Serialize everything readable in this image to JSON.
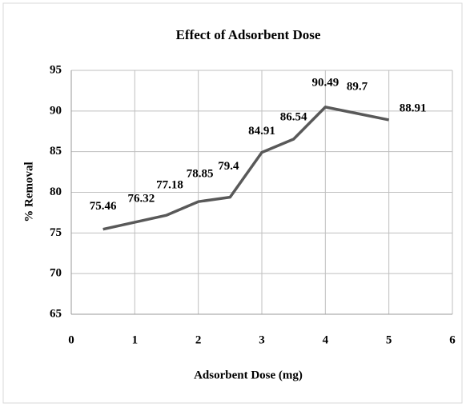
{
  "chart_data": {
    "type": "line",
    "title": "Effect of Adsorbent Dose",
    "x_label": "Adsorbent Dose (mg)",
    "y_label": "% Removal",
    "x": [
      0.5,
      1,
      1.5,
      2,
      2.5,
      3,
      3.5,
      4,
      4.5,
      5
    ],
    "series": [
      {
        "name": "% Removal",
        "color": "#595959",
        "values": [
          75.46,
          76.32,
          77.18,
          78.85,
          79.4,
          84.91,
          86.54,
          90.49,
          89.7,
          88.91
        ]
      }
    ],
    "xlim": [
      0,
      6
    ],
    "xticks": [
      0,
      1,
      2,
      3,
      4,
      5,
      6
    ],
    "ylim": [
      65,
      95
    ],
    "yticks": [
      65,
      70,
      75,
      80,
      85,
      90,
      95
    ],
    "grid": true
  }
}
